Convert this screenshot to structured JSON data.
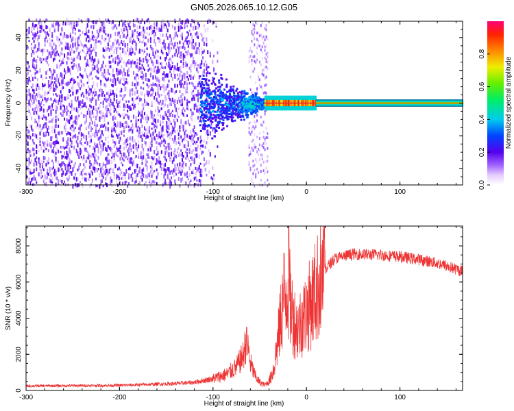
{
  "title": "GN05.2026.065.10.12.G05",
  "chart_data": [
    {
      "type": "heatmap",
      "xlabel": "Height of straight line (km)",
      "ylabel": "Frequency (Hz)",
      "xlim": [
        -300,
        167
      ],
      "ylim": [
        -50,
        50
      ],
      "x_ticks": [
        -300,
        -200,
        -100,
        0,
        100
      ],
      "y_ticks": [
        -40,
        -20,
        0,
        20,
        40
      ],
      "colorbar": {
        "label": "Normalized spectral amplitude",
        "range": [
          0,
          1
        ],
        "ticks": [
          "0.0",
          "0.2",
          "0.4",
          "0.6",
          "0.8"
        ]
      },
      "features": {
        "noise_region_x": [
          -300,
          -95
        ],
        "gap_x": [
          -85,
          -60
        ],
        "noise_band_x": [
          -62,
          -42
        ],
        "spread_blob_x": [
          -115,
          -45
        ],
        "tone_start_x": -45,
        "tone_frequency": 0
      }
    },
    {
      "type": "line",
      "xlabel": "Height of straight line (km)",
      "ylabel": "SNR (10 * v/v)",
      "xlim": [
        -300,
        167
      ],
      "ylim": [
        0,
        9100
      ],
      "x_ticks": [
        -300,
        -200,
        -100,
        0,
        100
      ],
      "y_ticks": [
        0,
        2000,
        4000,
        6000,
        8000
      ],
      "color": "#ee3333",
      "profile_points": [
        [
          -300,
          250
        ],
        [
          -200,
          280
        ],
        [
          -170,
          330
        ],
        [
          -140,
          380
        ],
        [
          -120,
          450
        ],
        [
          -100,
          650
        ],
        [
          -85,
          900
        ],
        [
          -75,
          1300
        ],
        [
          -68,
          1900
        ],
        [
          -64,
          2800
        ],
        [
          -60,
          1500
        ],
        [
          -55,
          800
        ],
        [
          -50,
          450
        ],
        [
          -45,
          300
        ],
        [
          -40,
          500
        ],
        [
          -35,
          1200
        ],
        [
          -30,
          3000
        ],
        [
          -25,
          5000
        ],
        [
          -20,
          5800
        ],
        [
          -15,
          4200
        ],
        [
          -10,
          3400
        ],
        [
          -5,
          3900
        ],
        [
          0,
          4300
        ],
        [
          10,
          5500
        ],
        [
          20,
          6700
        ],
        [
          30,
          7300
        ],
        [
          50,
          7550
        ],
        [
          80,
          7500
        ],
        [
          100,
          7400
        ],
        [
          120,
          7250
        ],
        [
          140,
          7050
        ],
        [
          167,
          6600
        ]
      ],
      "spikes": [
        {
          "x": -64,
          "y": 3500
        },
        {
          "x": -19,
          "y": 9100
        },
        {
          "x": -24,
          "y": 7600
        }
      ]
    }
  ]
}
